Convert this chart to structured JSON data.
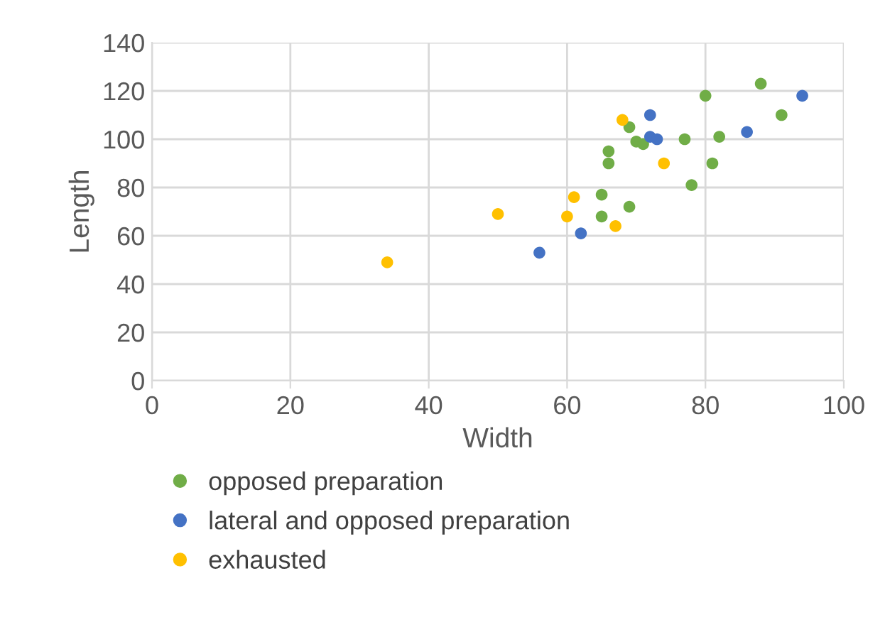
{
  "chart_data": {
    "type": "scatter",
    "xlabel": "Width",
    "ylabel": "Length",
    "xlim": [
      0,
      100
    ],
    "ylim": [
      0,
      140
    ],
    "xticks": [
      0,
      20,
      40,
      60,
      80,
      100
    ],
    "yticks": [
      0,
      20,
      40,
      60,
      80,
      100,
      120,
      140
    ],
    "grid": true,
    "legend": "bottom",
    "marker": "circle",
    "series": [
      {
        "name": "opposed preparation",
        "color": "#70ad47",
        "x": [
          88,
          80,
          91,
          69,
          70,
          71,
          66,
          77,
          82,
          66,
          81,
          78,
          65,
          69,
          65
        ],
        "values": [
          123,
          118,
          110,
          105,
          99,
          98,
          95,
          100,
          101,
          90,
          90,
          81,
          77,
          72,
          68
        ]
      },
      {
        "name": "lateral and opposed preparation",
        "color": "#4472c4",
        "x": [
          72,
          72,
          73,
          94,
          86,
          62,
          56
        ],
        "values": [
          110,
          101,
          100,
          118,
          103,
          61,
          53
        ]
      },
      {
        "name": "exhausted",
        "color": "#ffc000",
        "x": [
          68,
          74,
          61,
          50,
          60,
          67,
          34
        ],
        "values": [
          108,
          90,
          76,
          69,
          68,
          64,
          49
        ]
      }
    ]
  }
}
